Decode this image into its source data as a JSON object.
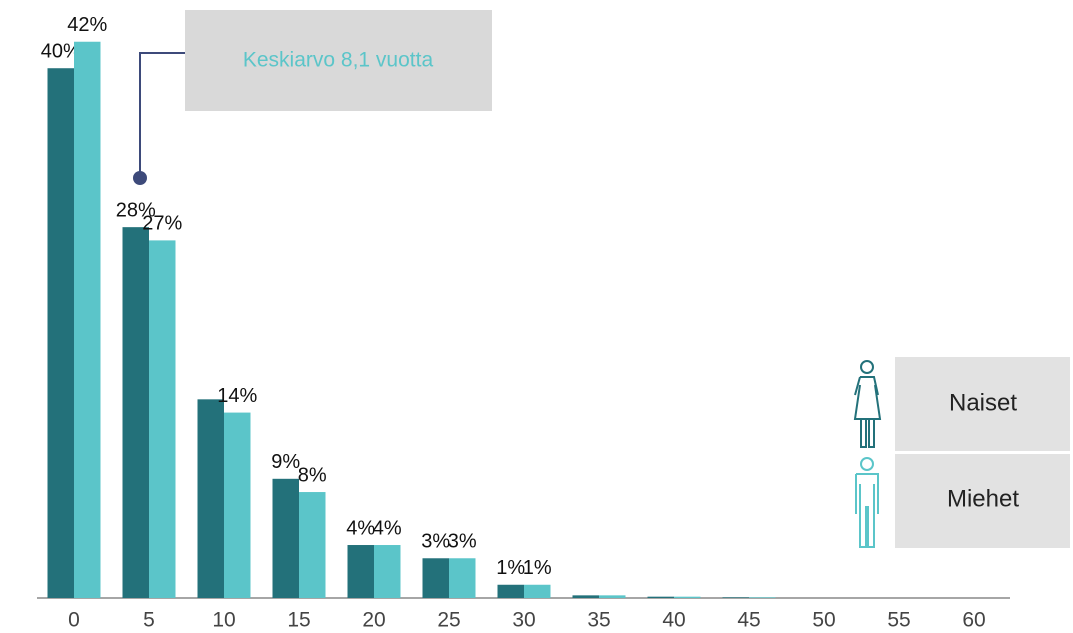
{
  "chart_data": {
    "type": "bar",
    "categories": [
      "0",
      "5",
      "10",
      "15",
      "20",
      "25",
      "30",
      "35",
      "40",
      "45",
      "50",
      "55",
      "60"
    ],
    "series": [
      {
        "name": "Naiset",
        "color": "#23717a",
        "values": [
          40,
          28,
          15,
          9,
          4,
          3,
          1,
          0.2,
          0.1,
          0.05,
          0,
          0,
          0
        ],
        "value_labels": [
          "40%",
          "28%",
          null,
          "9%",
          "4%",
          "3%",
          "1%",
          null,
          null,
          null,
          null,
          null,
          null
        ]
      },
      {
        "name": "Miehet",
        "color": "#5bc5c9",
        "values": [
          42,
          27,
          14,
          8,
          4,
          3,
          1,
          0.2,
          0.1,
          0.05,
          0,
          0,
          0
        ],
        "value_labels": [
          "42%",
          "27%",
          "14%",
          "8%",
          "4%",
          "3%",
          "1%",
          null,
          null,
          null,
          null,
          null,
          null
        ]
      }
    ],
    "ylim": [
      0,
      45
    ],
    "annotation": "Keskiarvo 8,1 vuotta",
    "legend": "right",
    "grid": false
  }
}
